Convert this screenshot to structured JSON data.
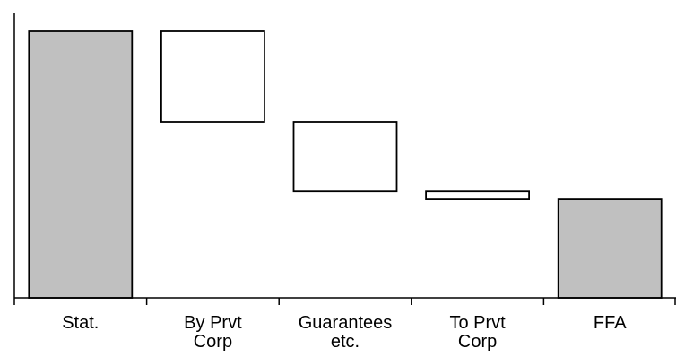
{
  "chart_data": {
    "type": "bar",
    "subtype": "waterfall",
    "categories": [
      [
        "Stat."
      ],
      [
        "By Prvt",
        "Corp"
      ],
      [
        "Guarantees",
        "etc."
      ],
      [
        "To Prvt",
        "Corp"
      ],
      [
        "FFA"
      ]
    ],
    "bars": [
      {
        "base": 0,
        "top": 100,
        "kind": "total"
      },
      {
        "base": 66,
        "top": 100,
        "kind": "step"
      },
      {
        "base": 40,
        "top": 66,
        "kind": "step"
      },
      {
        "base": 37,
        "top": 40,
        "kind": "step"
      },
      {
        "base": 0,
        "top": 37,
        "kind": "total"
      }
    ],
    "ylim": [
      0,
      100
    ],
    "grid": false,
    "colors": {
      "total_fill": "#c0c0c0",
      "step_fill": "#ffffff",
      "outline": "#000000"
    }
  }
}
